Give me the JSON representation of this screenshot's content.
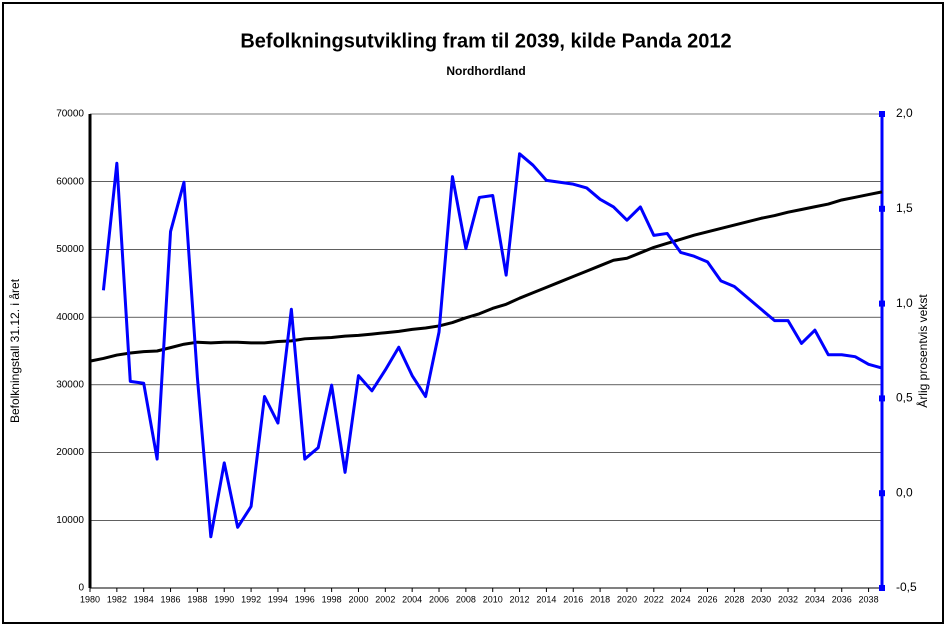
{
  "chart_data": {
    "type": "line",
    "title": "Befolkningsutvikling fram til 2039, kilde Panda 2012",
    "subtitle": "Nordhordland",
    "y_label": "Befolkningstall 31.12. i året",
    "y2_label": "Årlig prosentvis vekst",
    "x": [
      1980,
      1981,
      1982,
      1983,
      1984,
      1985,
      1986,
      1987,
      1988,
      1989,
      1990,
      1991,
      1992,
      1993,
      1994,
      1995,
      1996,
      1997,
      1998,
      1999,
      2000,
      2001,
      2002,
      2003,
      2004,
      2005,
      2006,
      2007,
      2008,
      2009,
      2010,
      2011,
      2012,
      2013,
      2014,
      2015,
      2016,
      2017,
      2018,
      2019,
      2020,
      2021,
      2022,
      2023,
      2024,
      2025,
      2026,
      2027,
      2028,
      2029,
      2030,
      2031,
      2032,
      2033,
      2034,
      2035,
      2036,
      2037,
      2038,
      2039
    ],
    "xlim": [
      1980,
      2039
    ],
    "xticks": [
      1980,
      1982,
      1984,
      1986,
      1988,
      1990,
      1992,
      1994,
      1996,
      1998,
      2000,
      2002,
      2004,
      2006,
      2008,
      2010,
      2012,
      2014,
      2016,
      2018,
      2020,
      2022,
      2024,
      2026,
      2028,
      2030,
      2032,
      2034,
      2036,
      2038
    ],
    "ylim": [
      0,
      70000
    ],
    "yticks": [
      0,
      10000,
      20000,
      30000,
      40000,
      50000,
      60000,
      70000
    ],
    "y2lim": [
      -0.5,
      2.0
    ],
    "y2ticks": [
      {
        "value": -0.5,
        "label": "-0,5"
      },
      {
        "value": 0,
        "label": "0,0"
      },
      {
        "value": 0.5,
        "label": "0,5"
      },
      {
        "value": 1.0,
        "label": "1,0"
      },
      {
        "value": 1.5,
        "label": "1,5"
      },
      {
        "value": 2.0,
        "label": "2,0"
      }
    ],
    "grid": true,
    "series": [
      {
        "color": "#000000",
        "axis": "y",
        "values": [
          33500,
          33900,
          34400,
          34700,
          34900,
          35000,
          35500,
          36000,
          36300,
          36200,
          36300,
          36300,
          36200,
          36200,
          36400,
          36500,
          36800,
          36900,
          37000,
          37200,
          37300,
          37500,
          37700,
          37900,
          38200,
          38400,
          38700,
          39200,
          39900,
          40500,
          41300,
          41900,
          42800,
          43600,
          44400,
          45200,
          46000,
          46800,
          47600,
          48400,
          48700,
          49500,
          50300,
          50900,
          51500,
          52100,
          52600,
          53100,
          53600,
          54100,
          54600,
          55000,
          55500,
          55900,
          56300,
          56700,
          57300,
          57700,
          58100,
          58500
        ]
      },
      {
        "color": "#0000ff",
        "axis": "y2",
        "values": [
          null,
          1.07,
          1.74,
          0.59,
          0.58,
          0.18,
          1.38,
          1.64,
          0.61,
          -0.23,
          0.16,
          -0.18,
          -0.07,
          0.51,
          0.37,
          0.97,
          0.18,
          0.24,
          0.57,
          0.11,
          0.62,
          0.54,
          0.65,
          0.77,
          0.62,
          0.51,
          0.85,
          1.67,
          1.29,
          1.56,
          1.57,
          1.15,
          1.79,
          1.73,
          1.65,
          1.64,
          1.63,
          1.61,
          1.55,
          1.51,
          1.44,
          1.51,
          1.36,
          1.37,
          1.27,
          1.25,
          1.22,
          1.12,
          1.09,
          1.03,
          0.97,
          0.91,
          0.91,
          0.79,
          0.86,
          0.73,
          0.73,
          0.72,
          0.68,
          0.66
        ]
      }
    ]
  }
}
